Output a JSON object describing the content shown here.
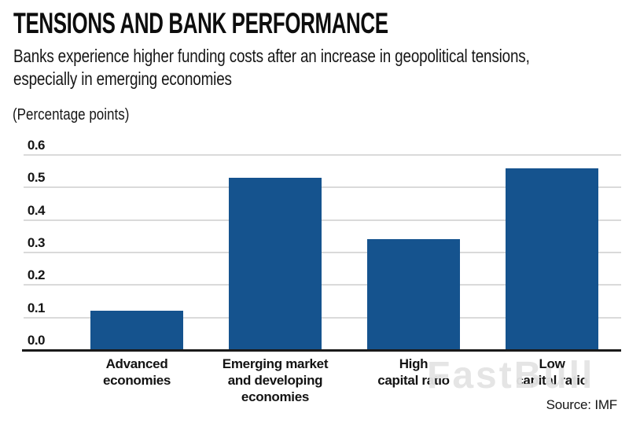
{
  "header": {
    "title": "TENSIONS AND BANK PERFORMANCE",
    "subtitle": "Banks experience higher funding costs after an increase in geopolitical tensions, especially in emerging economies",
    "units_label": "(Percentage points)"
  },
  "chart_data": {
    "type": "bar",
    "title": "TENSIONS AND BANK PERFORMANCE",
    "subtitle": "Banks experience higher funding costs after an increase in geopolitical tensions, especially in emerging economies",
    "ylabel": "(Percentage points)",
    "categories": [
      "Advanced economies",
      "Emerging market and developing economies",
      "High capital ratio",
      "Low capital ratio"
    ],
    "category_lines": [
      [
        "Advanced",
        "economies"
      ],
      [
        "Emerging market",
        "and developing",
        "economies"
      ],
      [
        "High",
        "capital ratio"
      ],
      [
        "Low",
        "capital ratio"
      ]
    ],
    "values": [
      0.12,
      0.53,
      0.34,
      0.56
    ],
    "ylim": [
      0,
      0.6
    ],
    "yticks": [
      0.0,
      0.1,
      0.2,
      0.3,
      0.4,
      0.5,
      0.6
    ],
    "ytick_labels": [
      "0.0",
      "0.1",
      "0.2",
      "0.3",
      "0.4",
      "0.5",
      "0.6"
    ],
    "grid": true,
    "legend": false,
    "bar_color": "#15538E"
  },
  "footer": {
    "source": "Source: IMF"
  },
  "watermark": "FastBull",
  "colors": {
    "bar": "#15538E",
    "gridline": "#DADADA",
    "axis": "#1A1A1A",
    "text": "#111111",
    "watermark": "#E4E4E4"
  }
}
